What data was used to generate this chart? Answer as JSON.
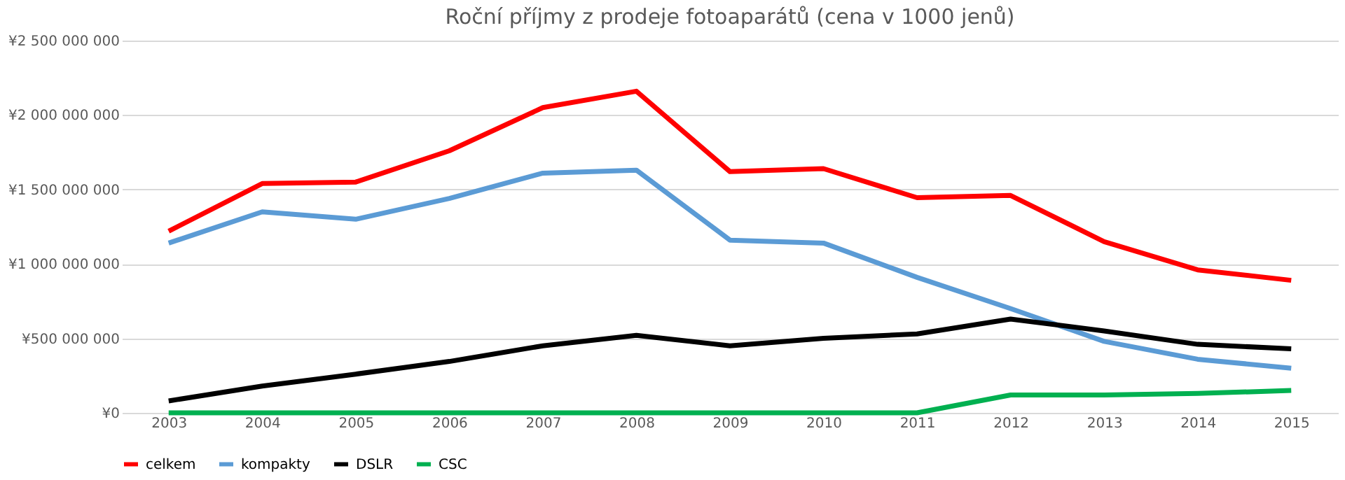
{
  "chart_data": {
    "type": "line",
    "title": "Roční příjmy z prodeje fotoaparátů (cena v 1000 jenů)",
    "categories": [
      "2003",
      "2004",
      "2005",
      "2006",
      "2007",
      "2008",
      "2009",
      "2010",
      "2011",
      "2012",
      "2013",
      "2014",
      "2015"
    ],
    "series": [
      {
        "name": "celkem",
        "color": "#ff0000",
        "values": [
          1220000000,
          1540000000,
          1550000000,
          1760000000,
          2050000000,
          2160000000,
          1620000000,
          1640000000,
          1445000000,
          1460000000,
          1150000000,
          960000000,
          890000000
        ]
      },
      {
        "name": "kompakty",
        "color": "#5b9bd5",
        "values": [
          1140000000,
          1350000000,
          1300000000,
          1440000000,
          1610000000,
          1630000000,
          1160000000,
          1140000000,
          910000000,
          700000000,
          480000000,
          360000000,
          300000000
        ]
      },
      {
        "name": "DSLR",
        "color": "#000000",
        "values": [
          80000000,
          180000000,
          260000000,
          345000000,
          450000000,
          520000000,
          450000000,
          500000000,
          530000000,
          630000000,
          550000000,
          460000000,
          430000000
        ]
      },
      {
        "name": "CSC",
        "color": "#00b050",
        "values": [
          0,
          0,
          0,
          0,
          0,
          0,
          0,
          0,
          0,
          120000000,
          120000000,
          130000000,
          150000000
        ]
      }
    ],
    "ylim": [
      0,
      2500000000
    ],
    "yticks": [
      {
        "value": 0,
        "label": "¥0"
      },
      {
        "value": 500000000,
        "label": "¥500 000 000"
      },
      {
        "value": 1000000000,
        "label": "¥1 000 000 000"
      },
      {
        "value": 1500000000,
        "label": "¥1 500 000 000"
      },
      {
        "value": 2000000000,
        "label": "¥2 000 000 000"
      },
      {
        "value": 2500000000,
        "label": "¥2 500 000 000"
      }
    ],
    "grid": "y",
    "legend": "bottom",
    "marker": "none",
    "line_style": "solid"
  }
}
